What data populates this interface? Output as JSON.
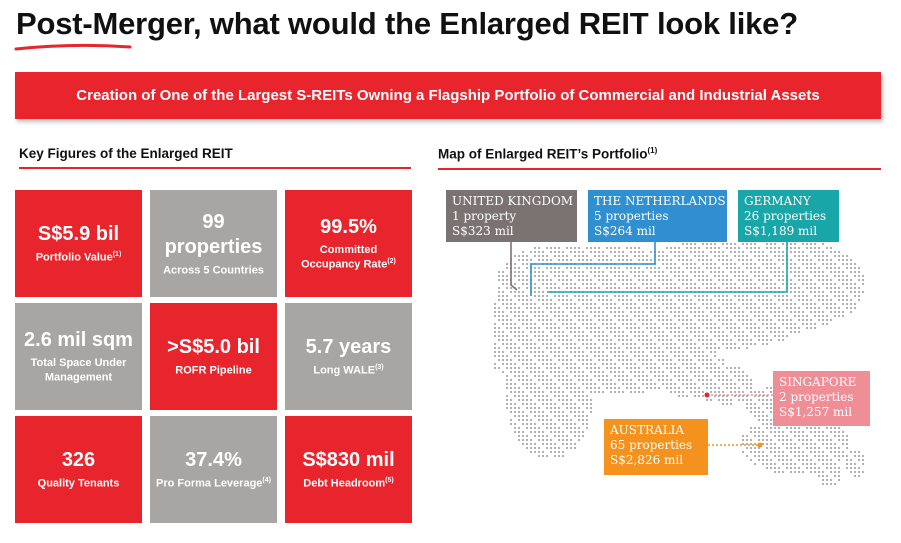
{
  "page": {
    "title": "Post-Merger, what would the Enlarged REIT look like?",
    "banner": "Creation of One of the Largest S-REITs Owning a Flagship Portfolio of Commercial and Industrial Assets"
  },
  "key_figures": {
    "heading": "Key Figures of the Enlarged REIT",
    "tiles": [
      {
        "value": "S$5.9 bil",
        "label": "Portfolio Value",
        "note": "(1)",
        "color": "#e8252d"
      },
      {
        "value": "99 properties",
        "label": "Across 5 Countries",
        "note": "",
        "color": "#a8a6a4"
      },
      {
        "value": "99.5%",
        "label": "Committed Occupancy Rate",
        "note": "(2)",
        "color": "#e8252d"
      },
      {
        "value": "2.6 mil sqm",
        "label": "Total Space Under Management",
        "note": "",
        "color": "#a8a6a4"
      },
      {
        "value": ">S$5.0 bil",
        "label": "ROFR Pipeline",
        "note": "",
        "color": "#e8252d"
      },
      {
        "value": "5.7 years",
        "label": "Long WALE",
        "note": "(3)",
        "color": "#a8a6a4"
      },
      {
        "value": "326",
        "label": "Quality Tenants",
        "note": "",
        "color": "#e8252d"
      },
      {
        "value": "37.4%",
        "label": "Pro Forma Leverage",
        "note": "(4)",
        "color": "#a8a6a4"
      },
      {
        "value": "S$830 mil",
        "label": "Debt Headroom",
        "note": "(5)",
        "color": "#e8252d"
      }
    ]
  },
  "map": {
    "heading": "Map of Enlarged REIT’s Portfolio",
    "heading_note": "(1)",
    "regions": [
      {
        "name": "UNITED KINGDOM",
        "properties": "1 property",
        "value": "S$323 mil",
        "color": "#7b7372"
      },
      {
        "name": "THE NETHERLANDS",
        "properties": "5 properties",
        "value": "S$264 mil",
        "color": "#2f8fd0"
      },
      {
        "name": "GERMANY",
        "properties": "26 properties",
        "value": "S$1,189 mil",
        "color": "#19a6a9"
      },
      {
        "name": "SINGAPORE",
        "properties": "2 properties",
        "value": "S$1,257 mil",
        "color": "#ef8e96"
      },
      {
        "name": "AUSTRALIA",
        "properties": "65 properties",
        "value": "S$2,826 mil",
        "color": "#f5921e"
      }
    ]
  }
}
